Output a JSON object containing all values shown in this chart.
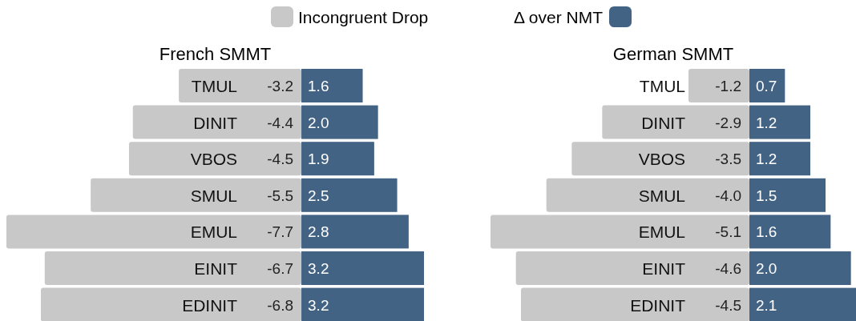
{
  "chart_data": [
    {
      "type": "bar",
      "orientation": "horizontal",
      "stacked": true,
      "title": "French SMMT",
      "categories": [
        "TMUL",
        "DINIT",
        "VBOS",
        "SMUL",
        "EMUL",
        "EINIT",
        "EDINIT"
      ],
      "series": [
        {
          "name": "Incongruent Drop",
          "color": "#c8c8c8",
          "values": [
            -3.2,
            -4.4,
            -4.5,
            -5.5,
            -7.7,
            -6.7,
            -6.8
          ],
          "value_labels": [
            "-3.2",
            "-4.4",
            "-4.5",
            "-5.5",
            "-7.7",
            "-6.7",
            "-6.8"
          ]
        },
        {
          "name": "Δ over NMT",
          "color": "#436384",
          "values": [
            1.6,
            2.0,
            1.9,
            2.5,
            2.8,
            3.2,
            3.2
          ],
          "value_labels": [
            "1.6",
            "2.0",
            "1.9",
            "2.5",
            "2.8",
            "3.2",
            "3.2"
          ]
        }
      ],
      "legend": "top"
    },
    {
      "type": "bar",
      "orientation": "horizontal",
      "stacked": true,
      "title": "German SMMT",
      "categories": [
        "TMUL",
        "DINIT",
        "VBOS",
        "SMUL",
        "EMUL",
        "EINIT",
        "EDINIT"
      ],
      "series": [
        {
          "color": "#c8c8c8",
          "values": [
            -1.2,
            -2.9,
            -3.5,
            -4.0,
            -5.1,
            -4.6,
            -4.5
          ],
          "value_labels": [
            "-1.2",
            "-2.9",
            "-3.5",
            "-4.0",
            "-5.1",
            "-4.6",
            "-4.5"
          ]
        },
        {
          "color": "#436384",
          "values": [
            0.7,
            1.2,
            1.2,
            1.5,
            1.6,
            2.0,
            2.1
          ],
          "value_labels": [
            "0.7",
            "1.2",
            "1.2",
            "1.5",
            "1.6",
            "2.0",
            "2.1"
          ]
        }
      ]
    }
  ]
}
